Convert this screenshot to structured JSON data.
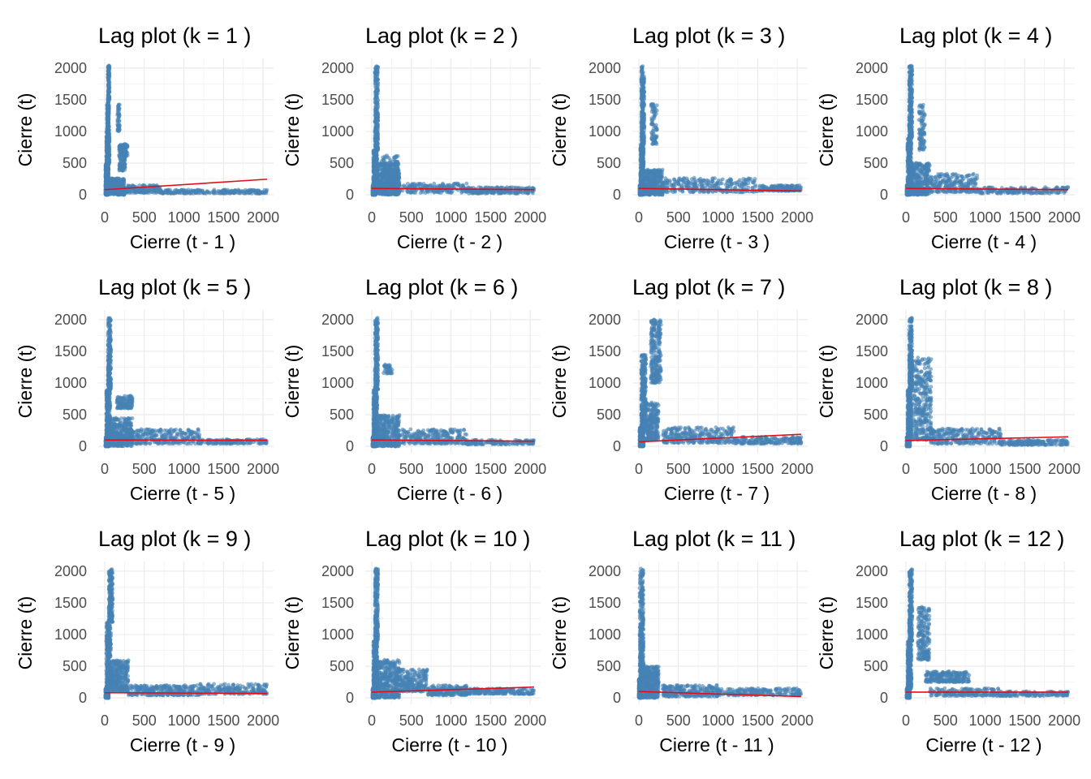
{
  "chart_data": [
    {
      "type": "scatter",
      "title": "Lag plot (k = 1 )",
      "xlabel": "Cierre (t - 1 )",
      "ylabel": "Cierre (t)",
      "xlim": [
        0,
        2050
      ],
      "ylim": [
        0,
        2050
      ],
      "xticks": [
        0,
        500,
        1000,
        1500,
        2000
      ],
      "yticks": [
        0,
        500,
        1000,
        1500,
        2000
      ],
      "xtick_labels": [
        "0",
        "500",
        "1000",
        "1500",
        "2000"
      ],
      "ytick_labels": [
        "0",
        "500",
        "1000",
        "1500",
        "2000"
      ],
      "grid": true,
      "colors": {
        "points": "#4682b4",
        "trend": "#e0101a"
      },
      "trend": [
        [
          0,
          80
        ],
        [
          2050,
          245
        ]
      ],
      "clusters": [
        [
          10,
          40,
          0,
          130,
          350
        ],
        [
          10,
          50,
          130,
          500,
          300
        ],
        [
          20,
          60,
          500,
          1000,
          250
        ],
        [
          30,
          55,
          1000,
          1500,
          160
        ],
        [
          40,
          60,
          1500,
          2040,
          120
        ],
        [
          50,
          250,
          0,
          260,
          300
        ],
        [
          180,
          260,
          380,
          800,
          120
        ],
        [
          230,
          290,
          600,
          800,
          50
        ],
        [
          160,
          190,
          1000,
          1440,
          50
        ],
        [
          250,
          700,
          30,
          150,
          150
        ],
        [
          700,
          2050,
          20,
          80,
          250
        ],
        [
          480,
          1200,
          480,
          1180,
          0,
          "diag"
        ]
      ]
    },
    {
      "type": "scatter",
      "title": "Lag plot (k = 2 )",
      "xlabel": "Cierre (t - 2 )",
      "ylabel": "Cierre (t)",
      "xlim": [
        0,
        2050
      ],
      "ylim": [
        0,
        2050
      ],
      "xticks": [
        0,
        500,
        1000,
        1500,
        2000
      ],
      "yticks": [
        0,
        500,
        1000,
        1500,
        2000
      ],
      "xtick_labels": [
        "0",
        "500",
        "1000",
        "1500",
        "2000"
      ],
      "ytick_labels": [
        "0",
        "500",
        "1000",
        "1500",
        "2000"
      ],
      "grid": true,
      "colors": {
        "points": "#4682b4",
        "trend": "#e0101a"
      },
      "trend": [
        [
          0,
          100
        ],
        [
          2050,
          80
        ]
      ],
      "clusters": [
        [
          10,
          50,
          0,
          150,
          400
        ],
        [
          20,
          70,
          150,
          700,
          300
        ],
        [
          40,
          80,
          700,
          2040,
          260
        ],
        [
          50,
          350,
          0,
          500,
          400
        ],
        [
          120,
          350,
          100,
          620,
          200
        ],
        [
          300,
          1200,
          30,
          180,
          200
        ],
        [
          1200,
          2050,
          20,
          120,
          220
        ]
      ]
    },
    {
      "type": "scatter",
      "title": "Lag plot (k = 3 )",
      "xlabel": "Cierre (t - 3 )",
      "ylabel": "Cierre (t)",
      "xlim": [
        0,
        2050
      ],
      "ylim": [
        0,
        2050
      ],
      "xticks": [
        0,
        500,
        1000,
        1500,
        2000
      ],
      "yticks": [
        0,
        500,
        1000,
        1500,
        2000
      ],
      "xtick_labels": [
        "0",
        "500",
        "1000",
        "1500",
        "2000"
      ],
      "ytick_labels": [
        "0",
        "500",
        "1000",
        "1500",
        "2000"
      ],
      "grid": true,
      "colors": {
        "points": "#4682b4",
        "trend": "#e0101a"
      },
      "trend": [
        [
          0,
          100
        ],
        [
          2050,
          60
        ]
      ],
      "clusters": [
        [
          10,
          50,
          0,
          150,
          400
        ],
        [
          20,
          60,
          150,
          800,
          300
        ],
        [
          30,
          70,
          800,
          2040,
          260
        ],
        [
          50,
          300,
          0,
          400,
          350
        ],
        [
          150,
          230,
          800,
          1450,
          80
        ],
        [
          300,
          1500,
          40,
          270,
          300
        ],
        [
          1500,
          2050,
          60,
          150,
          150
        ]
      ]
    },
    {
      "type": "scatter",
      "title": "Lag plot (k = 4 )",
      "xlabel": "Cierre (t - 4 )",
      "ylabel": "Cierre (t)",
      "xlim": [
        0,
        2050
      ],
      "ylim": [
        0,
        2050
      ],
      "xticks": [
        0,
        500,
        1000,
        1500,
        2000
      ],
      "yticks": [
        0,
        500,
        1000,
        1500,
        2000
      ],
      "xtick_labels": [
        "0",
        "500",
        "1000",
        "1500",
        "2000"
      ],
      "ytick_labels": [
        "0",
        "500",
        "1000",
        "1500",
        "2000"
      ],
      "grid": true,
      "colors": {
        "points": "#4682b4",
        "trend": "#e0101a"
      },
      "trend": [
        [
          0,
          100
        ],
        [
          2050,
          80
        ]
      ],
      "clusters": [
        [
          10,
          50,
          0,
          150,
          400
        ],
        [
          20,
          70,
          150,
          900,
          300
        ],
        [
          40,
          80,
          900,
          2040,
          260
        ],
        [
          50,
          300,
          0,
          500,
          350
        ],
        [
          160,
          240,
          700,
          1450,
          90
        ],
        [
          300,
          900,
          40,
          330,
          250
        ],
        [
          900,
          2050,
          20,
          120,
          200
        ]
      ]
    },
    {
      "type": "scatter",
      "title": "Lag plot (k = 5 )",
      "xlabel": "Cierre (t - 5 )",
      "ylabel": "Cierre (t)",
      "xlim": [
        0,
        2050
      ],
      "ylim": [
        0,
        2050
      ],
      "xticks": [
        0,
        500,
        1000,
        1500,
        2000
      ],
      "yticks": [
        0,
        500,
        1000,
        1500,
        2000
      ],
      "xtick_labels": [
        "0",
        "500",
        "1000",
        "1500",
        "2000"
      ],
      "ytick_labels": [
        "0",
        "500",
        "1000",
        "1500",
        "2000"
      ],
      "grid": true,
      "colors": {
        "points": "#4682b4",
        "trend": "#e0101a"
      },
      "trend": [
        [
          0,
          100
        ],
        [
          2050,
          95
        ]
      ],
      "clusters": [
        [
          10,
          50,
          0,
          150,
          400
        ],
        [
          20,
          70,
          150,
          900,
          300
        ],
        [
          40,
          80,
          900,
          2040,
          250
        ],
        [
          50,
          350,
          0,
          450,
          350
        ],
        [
          150,
          350,
          600,
          800,
          120
        ],
        [
          300,
          1200,
          40,
          270,
          300
        ],
        [
          1200,
          2050,
          40,
          110,
          150
        ]
      ]
    },
    {
      "type": "scatter",
      "title": "Lag plot (k = 6 )",
      "xlabel": "Cierre (t - 6 )",
      "ylabel": "Cierre (t)",
      "xlim": [
        0,
        2050
      ],
      "ylim": [
        0,
        2050
      ],
      "xticks": [
        0,
        500,
        1000,
        1500,
        2000
      ],
      "yticks": [
        0,
        500,
        1000,
        1500,
        2000
      ],
      "xtick_labels": [
        "0",
        "500",
        "1000",
        "1500",
        "2000"
      ],
      "ytick_labels": [
        "0",
        "500",
        "1000",
        "1500",
        "2000"
      ],
      "grid": true,
      "colors": {
        "points": "#4682b4",
        "trend": "#e0101a"
      },
      "trend": [
        [
          0,
          100
        ],
        [
          2050,
          80
        ]
      ],
      "clusters": [
        [
          10,
          50,
          0,
          150,
          400
        ],
        [
          20,
          70,
          150,
          900,
          300
        ],
        [
          40,
          80,
          900,
          2040,
          250
        ],
        [
          50,
          350,
          0,
          500,
          350
        ],
        [
          150,
          260,
          1150,
          1300,
          40
        ],
        [
          300,
          1200,
          40,
          270,
          300
        ],
        [
          1200,
          2050,
          30,
          100,
          150
        ]
      ]
    },
    {
      "type": "scatter",
      "title": "Lag plot (k = 7 )",
      "xlabel": "Cierre (t - 7 )",
      "ylabel": "Cierre (t)",
      "xlim": [
        0,
        2050
      ],
      "ylim": [
        0,
        2050
      ],
      "xticks": [
        0,
        500,
        1000,
        1500,
        2000
      ],
      "yticks": [
        0,
        500,
        1000,
        1500,
        2000
      ],
      "xtick_labels": [
        "0",
        "500",
        "1000",
        "1500",
        "2000"
      ],
      "ytick_labels": [
        "0",
        "500",
        "1000",
        "1500",
        "2000"
      ],
      "grid": true,
      "colors": {
        "points": "#4682b4",
        "trend": "#e0101a"
      },
      "trend": [
        [
          0,
          70
        ],
        [
          2050,
          190
        ]
      ],
      "clusters": [
        [
          10,
          60,
          0,
          300,
          400
        ],
        [
          30,
          90,
          300,
          1450,
          300
        ],
        [
          150,
          280,
          1000,
          2000,
          250
        ],
        [
          80,
          250,
          100,
          700,
          250
        ],
        [
          300,
          1200,
          50,
          300,
          300
        ],
        [
          1200,
          2050,
          40,
          150,
          200
        ]
      ]
    },
    {
      "type": "scatter",
      "title": "Lag plot (k = 8 )",
      "xlabel": "Cierre (t - 8 )",
      "ylabel": "Cierre (t)",
      "xlim": [
        0,
        2050
      ],
      "ylim": [
        0,
        2050
      ],
      "xticks": [
        0,
        500,
        1000,
        1500,
        2000
      ],
      "yticks": [
        0,
        500,
        1000,
        1500,
        2000
      ],
      "xtick_labels": [
        "0",
        "500",
        "1000",
        "1500",
        "2000"
      ],
      "ytick_labels": [
        "0",
        "500",
        "1000",
        "1500",
        "2000"
      ],
      "grid": true,
      "colors": {
        "points": "#4682b4",
        "trend": "#e0101a"
      },
      "trend": [
        [
          0,
          90
        ],
        [
          2050,
          150
        ]
      ],
      "clusters": [
        [
          10,
          50,
          0,
          150,
          400
        ],
        [
          20,
          70,
          150,
          900,
          300
        ],
        [
          40,
          80,
          900,
          2040,
          250
        ],
        [
          80,
          320,
          100,
          1400,
          350
        ],
        [
          300,
          1200,
          40,
          280,
          300
        ],
        [
          1200,
          2050,
          20,
          100,
          180
        ]
      ]
    },
    {
      "type": "scatter",
      "title": "Lag plot (k = 9 )",
      "xlabel": "Cierre (t - 9 )",
      "ylabel": "Cierre (t)",
      "xlim": [
        0,
        2050
      ],
      "ylim": [
        0,
        2050
      ],
      "xticks": [
        0,
        500,
        1000,
        1500,
        2000
      ],
      "yticks": [
        0,
        500,
        1000,
        1500,
        2000
      ],
      "xtick_labels": [
        "0",
        "500",
        "1000",
        "1500",
        "2000"
      ],
      "ytick_labels": [
        "0",
        "500",
        "1000",
        "1500",
        "2000"
      ],
      "grid": true,
      "colors": {
        "points": "#4682b4",
        "trend": "#e0101a"
      },
      "trend": [
        [
          0,
          80
        ],
        [
          2050,
          70
        ]
      ],
      "clusters": [
        [
          10,
          50,
          0,
          150,
          400
        ],
        [
          20,
          80,
          150,
          1200,
          300
        ],
        [
          50,
          100,
          1200,
          2040,
          200
        ],
        [
          80,
          300,
          100,
          600,
          300
        ],
        [
          300,
          1200,
          40,
          200,
          300
        ],
        [
          1200,
          2050,
          60,
          220,
          200
        ]
      ]
    },
    {
      "type": "scatter",
      "title": "Lag plot (k = 10 )",
      "xlabel": "Cierre (t - 10 )",
      "ylabel": "Cierre (t)",
      "xlim": [
        0,
        2050
      ],
      "ylim": [
        0,
        2050
      ],
      "xticks": [
        0,
        500,
        1000,
        1500,
        2000
      ],
      "yticks": [
        0,
        500,
        1000,
        1500,
        2000
      ],
      "xtick_labels": [
        "0",
        "500",
        "1000",
        "1500",
        "2000"
      ],
      "ytick_labels": [
        "0",
        "500",
        "1000",
        "1500",
        "2000"
      ],
      "grid": true,
      "colors": {
        "points": "#4682b4",
        "trend": "#e0101a"
      },
      "trend": [
        [
          0,
          90
        ],
        [
          2050,
          170
        ]
      ],
      "clusters": [
        [
          10,
          50,
          0,
          150,
          400
        ],
        [
          20,
          70,
          150,
          900,
          300
        ],
        [
          40,
          80,
          900,
          2040,
          250
        ],
        [
          50,
          350,
          0,
          600,
          400
        ],
        [
          300,
          700,
          100,
          450,
          250
        ],
        [
          700,
          1200,
          40,
          200,
          200
        ],
        [
          1200,
          2050,
          60,
          150,
          200
        ]
      ]
    },
    {
      "type": "scatter",
      "title": "Lag plot (k = 11 )",
      "xlabel": "Cierre (t - 11 )",
      "ylabel": "Cierre (t)",
      "xlim": [
        0,
        2050
      ],
      "ylim": [
        0,
        2050
      ],
      "xticks": [
        0,
        500,
        1000,
        1500,
        2000
      ],
      "yticks": [
        0,
        500,
        1000,
        1500,
        2000
      ],
      "xtick_labels": [
        "0",
        "500",
        "1000",
        "1500",
        "2000"
      ],
      "ytick_labels": [
        "0",
        "500",
        "1000",
        "1500",
        "2000"
      ],
      "grid": true,
      "colors": {
        "points": "#4682b4",
        "trend": "#e0101a"
      },
      "trend": [
        [
          0,
          100
        ],
        [
          2050,
          20
        ]
      ],
      "clusters": [
        [
          0,
          30,
          0,
          300,
          400
        ],
        [
          10,
          60,
          300,
          2040,
          350
        ],
        [
          50,
          250,
          0,
          500,
          350
        ],
        [
          300,
          1000,
          20,
          200,
          250
        ],
        [
          1000,
          2050,
          40,
          150,
          200
        ]
      ]
    },
    {
      "type": "scatter",
      "title": "Lag plot (k = 12 )",
      "xlabel": "Cierre (t - 12 )",
      "ylabel": "Cierre (t)",
      "xlim": [
        0,
        2050
      ],
      "ylim": [
        0,
        2050
      ],
      "xticks": [
        0,
        500,
        1000,
        1500,
        2000
      ],
      "yticks": [
        0,
        500,
        1000,
        1500,
        2000
      ],
      "xtick_labels": [
        "0",
        "500",
        "1000",
        "1500",
        "2000"
      ],
      "ytick_labels": [
        "0",
        "500",
        "1000",
        "1500",
        "2000"
      ],
      "grid": true,
      "colors": {
        "points": "#4682b4",
        "trend": "#e0101a"
      },
      "trend": [
        [
          0,
          90
        ],
        [
          2050,
          90
        ]
      ],
      "clusters": [
        [
          10,
          50,
          0,
          150,
          400
        ],
        [
          20,
          70,
          150,
          900,
          300
        ],
        [
          40,
          80,
          900,
          2040,
          250
        ],
        [
          150,
          300,
          600,
          1450,
          200
        ],
        [
          250,
          800,
          250,
          420,
          250
        ],
        [
          300,
          1200,
          30,
          150,
          200
        ],
        [
          1200,
          2050,
          30,
          100,
          150
        ]
      ]
    }
  ]
}
